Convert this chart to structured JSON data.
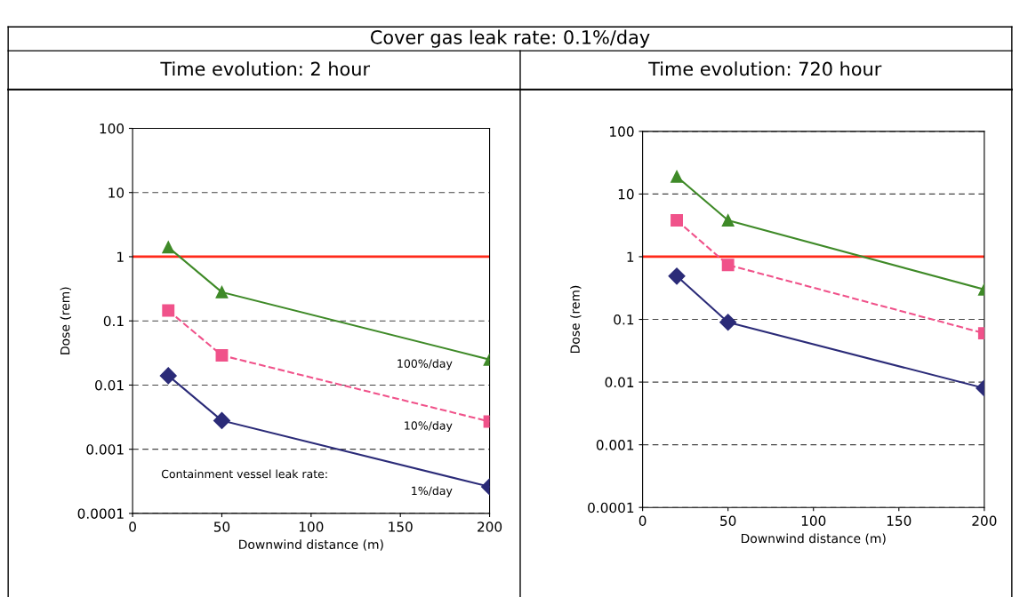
{
  "chart_data": [
    {
      "type": "line",
      "title": "Cover gas leak rate: 0.1%/day",
      "subtitle": "Time evolution: 2 hour",
      "xlabel": "Downwind distance (m)",
      "ylabel": "Dose (rem)",
      "x": [
        20,
        50,
        200
      ],
      "log": "y",
      "xlim": [
        0,
        200
      ],
      "xticks": [
        0,
        50,
        100,
        150,
        200
      ],
      "ylim": [
        0.0001,
        100
      ],
      "yticks": [
        0.0001,
        0.001,
        0.01,
        0.1,
        1,
        10,
        100
      ],
      "grid": "y",
      "series": [
        {
          "name": "100%/day",
          "color": "#3f8a28",
          "marker": "triangle",
          "line_style": "solid",
          "values": [
            1.4,
            0.28,
            0.025
          ]
        },
        {
          "name": "10%/day",
          "color": "#f0528a",
          "marker": "square",
          "line_style": "dashed",
          "values": [
            0.145,
            0.029,
            0.0027
          ]
        },
        {
          "name": "1%/day",
          "color": "#2b2b78",
          "marker": "diamond",
          "line_style": "solid",
          "values": [
            0.014,
            0.0028,
            0.00026
          ]
        }
      ],
      "ref_lines": [
        {
          "axis": "y",
          "value": 1,
          "color": "#ff2a1a"
        }
      ],
      "annotations": [
        "Containment vessel leak rate:"
      ]
    },
    {
      "type": "line",
      "subtitle": "Time evolution: 720 hour",
      "xlabel": "Downwind distance (m)",
      "ylabel": "Dose (rem)",
      "x": [
        20,
        50,
        200
      ],
      "log": "y",
      "xlim": [
        0,
        200
      ],
      "xticks": [
        0,
        50,
        100,
        150,
        200
      ],
      "ylim": [
        0.0001,
        100
      ],
      "yticks": [
        0.0001,
        0.001,
        0.01,
        0.1,
        1,
        10,
        100
      ],
      "grid": "y",
      "series": [
        {
          "color": "#3f8a28",
          "marker": "triangle",
          "line_style": "solid",
          "values": [
            19,
            3.8,
            0.3
          ]
        },
        {
          "color": "#f0528a",
          "marker": "square",
          "line_style": "dashed",
          "values": [
            3.8,
            0.74,
            0.06
          ]
        },
        {
          "color": "#2b2b78",
          "marker": "diamond",
          "line_style": "solid",
          "values": [
            0.49,
            0.09,
            0.008
          ]
        }
      ],
      "ref_lines": [
        {
          "axis": "y",
          "value": 1,
          "color": "#ff2a1a"
        }
      ]
    }
  ]
}
